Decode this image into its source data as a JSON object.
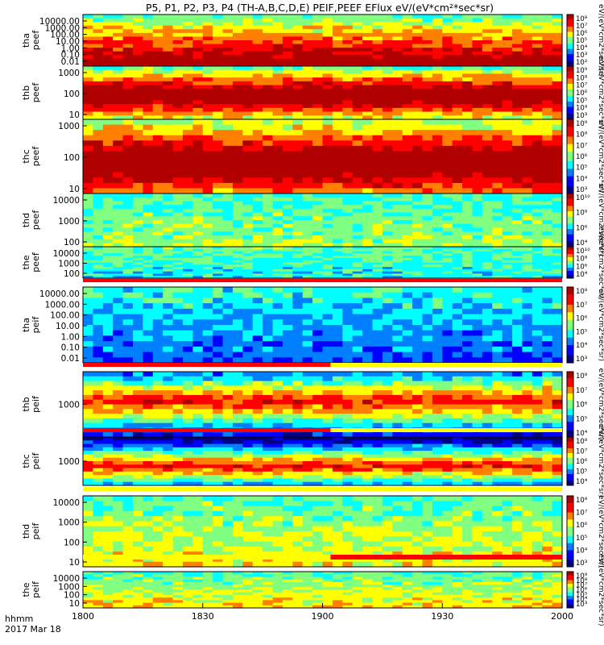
{
  "title": "P5, P1, P2, P3, P4 (TH-A,B,C,D,E) PEIF,PEEF EFlux eV/(eV*cm²*sec*sr)",
  "time_axis": {
    "label_top": "hhmm",
    "label_bottom": "2017 Mar 18",
    "ticks": [
      "1800",
      "1830",
      "1900",
      "1930",
      "2000"
    ]
  },
  "colorbar_title_eeif": "eV/(eV*cm2*sec*sr)",
  "chart_data": {
    "type": "heatmap",
    "x_range": [
      "18:00",
      "20:00"
    ],
    "date": "2017 Mar 18",
    "panels": [
      {
        "id": "tha-peef",
        "ylabel": [
          "tha",
          "peef"
        ],
        "yticks": [
          "10000.00",
          "1000.00",
          "100.00",
          "10.00",
          "1.00",
          "0.10",
          "0.01"
        ],
        "ylog": true,
        "cbar_ticks": [
          "10⁸",
          "10⁷",
          "10⁶",
          "10⁵",
          "10⁴",
          "10³",
          "10²"
        ],
        "bar": null
      },
      {
        "id": "thb-peef",
        "ylabel": [
          "thb",
          "peef"
        ],
        "yticks": [
          "1000",
          "100",
          "10"
        ],
        "ylog": true,
        "cbar_ticks": [
          "10⁹",
          "10⁸",
          "10⁷",
          "10⁶",
          "10⁵",
          "10⁴",
          "10³"
        ],
        "bar": null
      },
      {
        "id": "thc-peef",
        "ylabel": [
          "thc",
          "peef"
        ],
        "yticks": [
          "1000",
          "100",
          "10"
        ],
        "ylog": true,
        "cbar_ticks": [
          "10⁹",
          "10⁸",
          "10⁷",
          "10⁶",
          "10⁵",
          "10⁴",
          "10³"
        ],
        "bar": null
      },
      {
        "id": "thd-peef",
        "ylabel": [
          "thd",
          "peef"
        ],
        "yticks": [
          "10000",
          "1000",
          "100"
        ],
        "ylog": true,
        "cbar_ticks": [
          "10¹⁰",
          "10⁸",
          "10⁶",
          "10⁴"
        ],
        "bar": null
      },
      {
        "id": "the-peef",
        "ylabel": [
          "the",
          "peef"
        ],
        "yticks": [
          "10000",
          "1000",
          "100"
        ],
        "ylog": true,
        "cbar_ticks": [
          "10¹⁰",
          "10⁸",
          "10⁶",
          "10⁴"
        ],
        "bar": {
          "segments": [
            [
              "1800",
              "2000",
              "red"
            ]
          ]
        }
      },
      {
        "id": "tha-peif",
        "ylabel": [
          "tha",
          "peif"
        ],
        "yticks": [
          "10000.00",
          "1000.00",
          "100.00",
          "10.00",
          "1.00",
          "0.10",
          "0.01"
        ],
        "ylog": true,
        "cbar_ticks": [
          "10⁸",
          "10⁷",
          "10⁶",
          "10⁵",
          "10⁴",
          "10³"
        ],
        "bar": {
          "segments": [
            [
              "1800",
              "1902",
              "red"
            ],
            [
              "1902",
              "2000",
              "yellow"
            ]
          ]
        }
      },
      {
        "id": "thb-peif",
        "ylabel": [
          "thb",
          "peif"
        ],
        "yticks": [
          "1000"
        ],
        "ylog": true,
        "cbar_ticks": [
          "10⁸",
          "10⁷",
          "10⁶",
          "10⁵",
          "10⁴"
        ],
        "bar": {
          "segments": [
            [
              "1800",
              "1902",
              "red"
            ],
            [
              "1902",
              "2000",
              "yellow"
            ]
          ]
        }
      },
      {
        "id": "thc-peif",
        "ylabel": [
          "thc",
          "peif"
        ],
        "yticks": [
          "1000"
        ],
        "ylog": true,
        "cbar_ticks": [
          "10⁸",
          "10⁷",
          "10⁶",
          "10⁵",
          "10⁴"
        ],
        "bar": {
          "segments": [
            [
              "1800",
              "2000",
              "yellow"
            ]
          ]
        }
      },
      {
        "id": "thd-peif",
        "ylabel": [
          "thd",
          "peif"
        ],
        "yticks": [
          "10000",
          "1000",
          "100",
          "10"
        ],
        "ylog": true,
        "cbar_ticks": [
          "10⁸",
          "10⁷",
          "10⁶",
          "10⁵",
          "10⁴",
          "10³"
        ],
        "bar": {
          "segments": [
            [
              "1800",
              "1902",
              "yellow"
            ],
            [
              "1902",
              "2000",
              "red"
            ]
          ]
        }
      },
      {
        "id": "the-peif",
        "ylabel": [
          "the",
          "peif"
        ],
        "yticks": [
          "10000",
          "1000",
          "100",
          "10"
        ],
        "ylog": true,
        "cbar_ticks": [
          "10⁹",
          "10⁸",
          "10⁷",
          "10⁶",
          "10⁵",
          "10⁴",
          "10³"
        ],
        "bar": null
      }
    ],
    "colormap": [
      "#000080",
      "#0000ff",
      "#0080ff",
      "#00ffff",
      "#80ff80",
      "#ffff00",
      "#ff8000",
      "#ff0000",
      "#b00000"
    ]
  }
}
